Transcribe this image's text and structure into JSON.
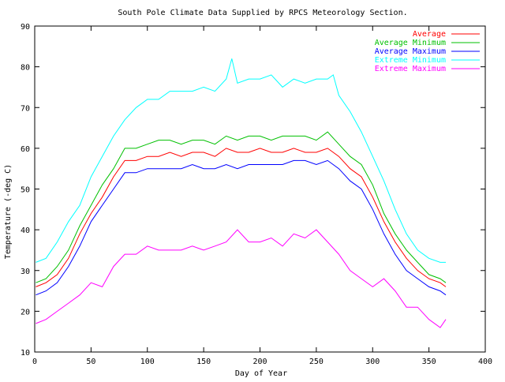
{
  "chart_data": {
    "type": "line",
    "title": "South Pole Climate Data Supplied by RPCS Meteorology Section.",
    "xlabel": "Day of Year",
    "ylabel": "Temperature (-deg C)",
    "xlim": [
      0,
      400
    ],
    "ylim": [
      10,
      90
    ],
    "xticks": [
      0,
      50,
      100,
      150,
      200,
      250,
      300,
      350,
      400
    ],
    "yticks": [
      10,
      20,
      30,
      40,
      50,
      60,
      70,
      80,
      90
    ],
    "grid": false,
    "legend_position": "top-right",
    "series": [
      {
        "name": "Average",
        "color": "#ff0000",
        "points": [
          [
            1,
            26
          ],
          [
            10,
            27
          ],
          [
            20,
            29
          ],
          [
            30,
            33
          ],
          [
            40,
            39
          ],
          [
            50,
            44
          ],
          [
            60,
            48
          ],
          [
            70,
            53
          ],
          [
            80,
            57
          ],
          [
            90,
            57
          ],
          [
            100,
            58
          ],
          [
            110,
            58
          ],
          [
            120,
            59
          ],
          [
            130,
            58
          ],
          [
            140,
            59
          ],
          [
            150,
            59
          ],
          [
            160,
            58
          ],
          [
            170,
            60
          ],
          [
            180,
            59
          ],
          [
            190,
            59
          ],
          [
            200,
            60
          ],
          [
            210,
            59
          ],
          [
            220,
            59
          ],
          [
            230,
            60
          ],
          [
            240,
            59
          ],
          [
            250,
            59
          ],
          [
            260,
            60
          ],
          [
            270,
            58
          ],
          [
            280,
            55
          ],
          [
            290,
            53
          ],
          [
            300,
            48
          ],
          [
            310,
            42
          ],
          [
            320,
            37
          ],
          [
            330,
            33
          ],
          [
            340,
            30
          ],
          [
            350,
            28
          ],
          [
            360,
            27
          ],
          [
            365,
            26
          ]
        ]
      },
      {
        "name": "Average Minimum",
        "color": "#00c000",
        "points": [
          [
            1,
            27
          ],
          [
            10,
            28
          ],
          [
            20,
            31
          ],
          [
            30,
            35
          ],
          [
            40,
            41
          ],
          [
            50,
            46
          ],
          [
            60,
            51
          ],
          [
            70,
            55
          ],
          [
            80,
            60
          ],
          [
            90,
            60
          ],
          [
            100,
            61
          ],
          [
            110,
            62
          ],
          [
            120,
            62
          ],
          [
            130,
            61
          ],
          [
            140,
            62
          ],
          [
            150,
            62
          ],
          [
            160,
            61
          ],
          [
            170,
            63
          ],
          [
            180,
            62
          ],
          [
            190,
            63
          ],
          [
            200,
            63
          ],
          [
            210,
            62
          ],
          [
            220,
            63
          ],
          [
            230,
            63
          ],
          [
            240,
            63
          ],
          [
            250,
            62
          ],
          [
            260,
            64
          ],
          [
            270,
            61
          ],
          [
            280,
            58
          ],
          [
            290,
            56
          ],
          [
            300,
            51
          ],
          [
            310,
            44
          ],
          [
            320,
            39
          ],
          [
            330,
            35
          ],
          [
            340,
            32
          ],
          [
            350,
            29
          ],
          [
            360,
            28
          ],
          [
            365,
            27
          ]
        ]
      },
      {
        "name": "Average Maximum",
        "color": "#0000ff",
        "points": [
          [
            1,
            24
          ],
          [
            10,
            25
          ],
          [
            20,
            27
          ],
          [
            30,
            31
          ],
          [
            40,
            36
          ],
          [
            50,
            42
          ],
          [
            60,
            46
          ],
          [
            70,
            50
          ],
          [
            80,
            54
          ],
          [
            90,
            54
          ],
          [
            100,
            55
          ],
          [
            110,
            55
          ],
          [
            120,
            55
          ],
          [
            130,
            55
          ],
          [
            140,
            56
          ],
          [
            150,
            55
          ],
          [
            160,
            55
          ],
          [
            170,
            56
          ],
          [
            180,
            55
          ],
          [
            190,
            56
          ],
          [
            200,
            56
          ],
          [
            210,
            56
          ],
          [
            220,
            56
          ],
          [
            230,
            57
          ],
          [
            240,
            57
          ],
          [
            250,
            56
          ],
          [
            260,
            57
          ],
          [
            270,
            55
          ],
          [
            280,
            52
          ],
          [
            290,
            50
          ],
          [
            300,
            45
          ],
          [
            310,
            39
          ],
          [
            320,
            34
          ],
          [
            330,
            30
          ],
          [
            340,
            28
          ],
          [
            350,
            26
          ],
          [
            360,
            25
          ],
          [
            365,
            24
          ]
        ]
      },
      {
        "name": "Extreme Minimum",
        "color": "#00ffff",
        "points": [
          [
            1,
            32
          ],
          [
            10,
            33
          ],
          [
            20,
            37
          ],
          [
            30,
            42
          ],
          [
            40,
            46
          ],
          [
            50,
            53
          ],
          [
            60,
            58
          ],
          [
            70,
            63
          ],
          [
            80,
            67
          ],
          [
            90,
            70
          ],
          [
            100,
            72
          ],
          [
            110,
            72
          ],
          [
            120,
            74
          ],
          [
            130,
            74
          ],
          [
            140,
            74
          ],
          [
            150,
            75
          ],
          [
            160,
            74
          ],
          [
            170,
            77
          ],
          [
            175,
            82
          ],
          [
            180,
            76
          ],
          [
            190,
            77
          ],
          [
            200,
            77
          ],
          [
            210,
            78
          ],
          [
            220,
            75
          ],
          [
            230,
            77
          ],
          [
            240,
            76
          ],
          [
            250,
            77
          ],
          [
            260,
            77
          ],
          [
            265,
            78
          ],
          [
            270,
            73
          ],
          [
            280,
            69
          ],
          [
            290,
            64
          ],
          [
            300,
            58
          ],
          [
            310,
            52
          ],
          [
            320,
            45
          ],
          [
            330,
            39
          ],
          [
            340,
            35
          ],
          [
            350,
            33
          ],
          [
            360,
            32
          ],
          [
            365,
            32
          ]
        ]
      },
      {
        "name": "Extreme Maximum",
        "color": "#ff00ff",
        "points": [
          [
            1,
            17
          ],
          [
            10,
            18
          ],
          [
            20,
            20
          ],
          [
            30,
            22
          ],
          [
            40,
            24
          ],
          [
            50,
            27
          ],
          [
            60,
            26
          ],
          [
            70,
            31
          ],
          [
            80,
            34
          ],
          [
            90,
            34
          ],
          [
            100,
            36
          ],
          [
            110,
            35
          ],
          [
            120,
            35
          ],
          [
            130,
            35
          ],
          [
            140,
            36
          ],
          [
            150,
            35
          ],
          [
            160,
            36
          ],
          [
            170,
            37
          ],
          [
            180,
            40
          ],
          [
            190,
            37
          ],
          [
            200,
            37
          ],
          [
            210,
            38
          ],
          [
            220,
            36
          ],
          [
            230,
            39
          ],
          [
            240,
            38
          ],
          [
            250,
            40
          ],
          [
            260,
            37
          ],
          [
            270,
            34
          ],
          [
            280,
            30
          ],
          [
            290,
            28
          ],
          [
            300,
            26
          ],
          [
            310,
            28
          ],
          [
            320,
            25
          ],
          [
            330,
            21
          ],
          [
            340,
            21
          ],
          [
            350,
            18
          ],
          [
            360,
            16
          ],
          [
            365,
            18
          ]
        ]
      }
    ]
  }
}
